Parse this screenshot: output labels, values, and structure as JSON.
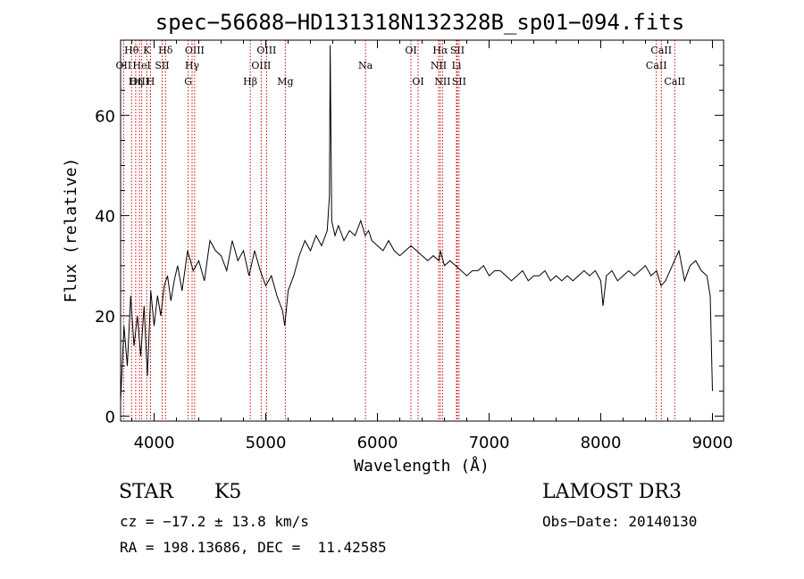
{
  "chart_data": {
    "type": "line",
    "title": "spec−56688−HD131318N132328B_sp01−094.fits",
    "xlabel": "Wavelength (Å)",
    "ylabel": "Flux (relative)",
    "xlim": [
      3700,
      9100
    ],
    "ylim": [
      -1,
      75
    ],
    "xticks": [
      4000,
      5000,
      6000,
      7000,
      8000,
      9000
    ],
    "yticks": [
      0,
      20,
      40,
      60
    ],
    "line_color": "#000000",
    "marker_color": "#cc0000",
    "spectrum": {
      "name": "flux",
      "x": [
        3700,
        3730,
        3760,
        3790,
        3820,
        3850,
        3880,
        3910,
        3940,
        3970,
        4000,
        4030,
        4060,
        4090,
        4120,
        4150,
        4180,
        4210,
        4250,
        4300,
        4350,
        4400,
        4450,
        4500,
        4550,
        4600,
        4650,
        4700,
        4750,
        4800,
        4850,
        4900,
        4950,
        5000,
        5050,
        5100,
        5150,
        5170,
        5200,
        5250,
        5300,
        5350,
        5400,
        5450,
        5500,
        5550,
        5570,
        5577,
        5590,
        5620,
        5650,
        5700,
        5750,
        5800,
        5850,
        5890,
        5920,
        5950,
        6000,
        6050,
        6100,
        6150,
        6200,
        6250,
        6300,
        6350,
        6400,
        6450,
        6500,
        6550,
        6563,
        6600,
        6650,
        6700,
        6750,
        6800,
        6850,
        6900,
        6950,
        7000,
        7050,
        7100,
        7150,
        7200,
        7250,
        7300,
        7350,
        7400,
        7450,
        7500,
        7550,
        7600,
        7650,
        7700,
        7750,
        7800,
        7850,
        7900,
        7950,
        8000,
        8020,
        8050,
        8100,
        8150,
        8200,
        8250,
        8300,
        8350,
        8400,
        8450,
        8500,
        8540,
        8580,
        8620,
        8660,
        8700,
        8750,
        8800,
        8850,
        8900,
        8950,
        8980,
        9000
      ],
      "y": [
        3,
        18,
        10,
        24,
        14,
        20,
        12,
        22,
        8,
        25,
        18,
        24,
        20,
        26,
        28,
        23,
        27,
        30,
        25,
        33,
        29,
        31,
        27,
        35,
        33,
        32,
        29,
        35,
        31,
        33,
        28,
        33,
        29,
        26,
        28,
        24,
        21,
        18,
        25,
        28,
        32,
        35,
        33,
        36,
        34,
        37,
        44,
        74,
        39,
        36,
        38,
        35,
        37,
        36,
        39,
        36,
        37,
        35,
        34,
        33,
        35,
        33,
        32,
        33,
        34,
        33,
        32,
        31,
        32,
        31,
        33,
        30,
        31,
        30,
        29,
        28,
        29,
        29,
        30,
        28,
        29,
        29,
        28,
        27,
        28,
        29,
        27,
        28,
        28,
        29,
        27,
        28,
        27,
        28,
        27,
        28,
        29,
        28,
        29,
        27,
        22,
        28,
        29,
        27,
        28,
        29,
        28,
        29,
        30,
        28,
        29,
        26,
        27,
        29,
        31,
        33,
        27,
        30,
        31,
        29,
        28,
        24,
        5
      ]
    },
    "line_markers": [
      {
        "label": "Hθ",
        "x": 3798,
        "row": 0
      },
      {
        "label": "K",
        "x": 3934,
        "row": 0
      },
      {
        "label": "Hδ",
        "x": 4102,
        "row": 0
      },
      {
        "label": "OIII",
        "x": 4363,
        "row": 0
      },
      {
        "label": "OIII",
        "x": 5007,
        "row": 0
      },
      {
        "label": "OI",
        "x": 6300,
        "row": 0
      },
      {
        "label": "Hα",
        "x": 6563,
        "row": 0
      },
      {
        "label": "SII",
        "x": 6716,
        "row": 0
      },
      {
        "label": "CaII",
        "x": 8542,
        "row": 0
      },
      {
        "label": "OII",
        "x": 3727,
        "row": 1
      },
      {
        "label": "HeI",
        "x": 3889,
        "row": 1
      },
      {
        "label": "SII",
        "x": 4072,
        "row": 1
      },
      {
        "label": "Hγ",
        "x": 4340,
        "row": 1
      },
      {
        "label": "OIII",
        "x": 4959,
        "row": 1
      },
      {
        "label": "Na",
        "x": 5893,
        "row": 1
      },
      {
        "label": "NII",
        "x": 6548,
        "row": 1
      },
      {
        "label": "Li",
        "x": 6708,
        "row": 1
      },
      {
        "label": "CaII",
        "x": 8498,
        "row": 1
      },
      {
        "label": "OIII",
        "x": 3869,
        "row": 2
      },
      {
        "label": "Hη",
        "x": 3835,
        "row": 2
      },
      {
        "label": "H",
        "x": 3968,
        "row": 2
      },
      {
        "label": "G",
        "x": 4305,
        "row": 2
      },
      {
        "label": "Hβ",
        "x": 4861,
        "row": 2
      },
      {
        "label": "Mg",
        "x": 5175,
        "row": 2
      },
      {
        "label": "OI",
        "x": 6364,
        "row": 2
      },
      {
        "label": "NII",
        "x": 6583,
        "row": 2
      },
      {
        "label": "SII",
        "x": 6731,
        "row": 2
      },
      {
        "label": "CaII",
        "x": 8662,
        "row": 2
      }
    ]
  },
  "info": {
    "object_class": "STAR",
    "subclass": "K5",
    "survey": "LAMOST DR3",
    "redshift": "cz = −17.2 ± 13.8 km/s",
    "obs_date": "Obs−Date: 20140130",
    "coords": "RA = 198.13686, DEC =  11.42585"
  }
}
